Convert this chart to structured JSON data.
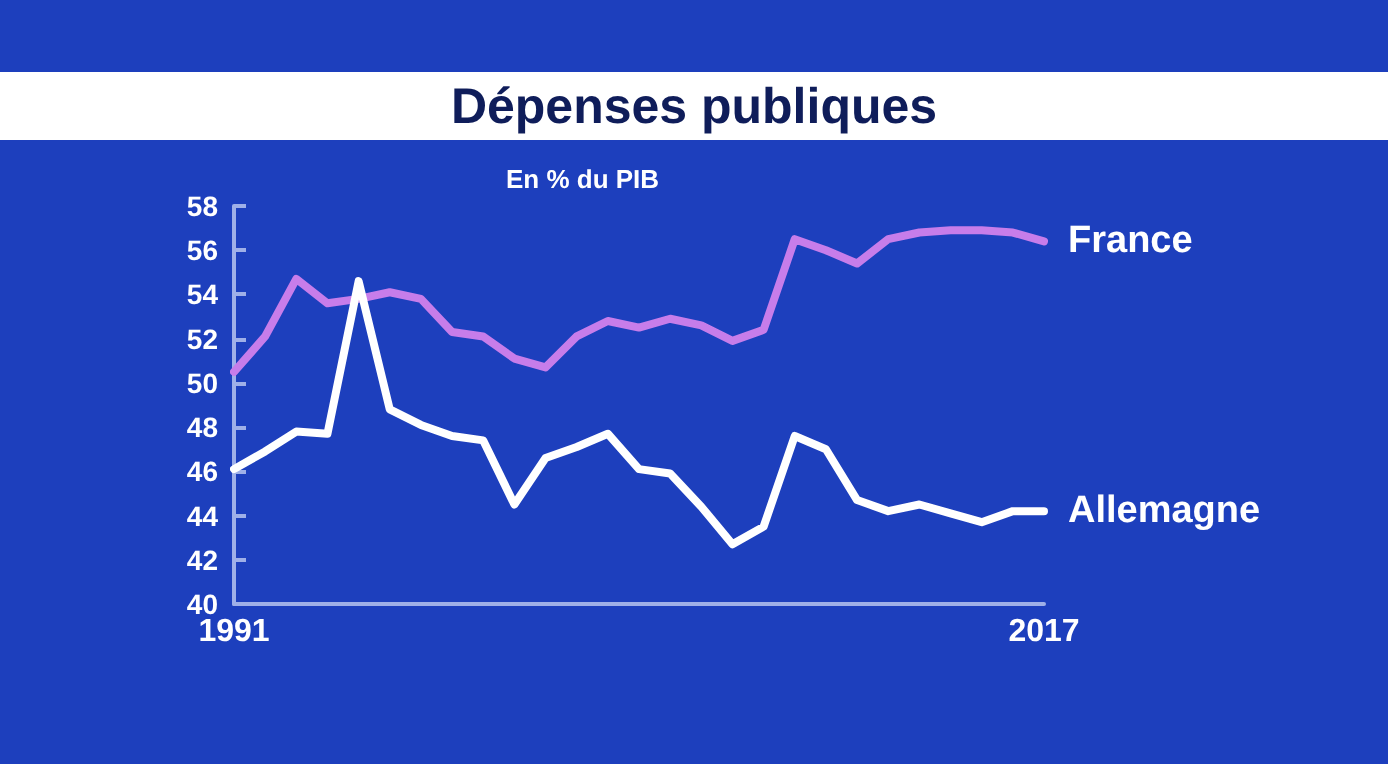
{
  "chart_data": {
    "type": "line",
    "title": "Dépenses publiques",
    "subtitle": "En % du PIB",
    "x": [
      1991,
      1992,
      1993,
      1994,
      1995,
      1996,
      1997,
      1998,
      1999,
      2000,
      2001,
      2002,
      2003,
      2004,
      2005,
      2006,
      2007,
      2008,
      2009,
      2010,
      2011,
      2012,
      2013,
      2014,
      2015,
      2016,
      2017
    ],
    "xlim": [
      1991,
      2017
    ],
    "xticks": [
      1991,
      2017
    ],
    "ylim": [
      40,
      58
    ],
    "yticks": [
      40,
      42,
      44,
      46,
      48,
      50,
      52,
      54,
      56,
      58
    ],
    "series": [
      {
        "name": "France",
        "color": "#c77dea",
        "values": [
          50.5,
          52.1,
          54.7,
          53.6,
          53.8,
          54.1,
          53.8,
          52.3,
          52.1,
          51.1,
          50.7,
          52.1,
          52.8,
          52.5,
          52.9,
          52.6,
          51.9,
          52.4,
          56.5,
          56.0,
          55.4,
          56.5,
          56.8,
          56.9,
          56.9,
          56.8,
          56.4
        ]
      },
      {
        "name": "Allemagne",
        "color": "#ffffff",
        "values": [
          46.1,
          46.9,
          47.8,
          47.7,
          54.6,
          48.8,
          48.1,
          47.6,
          47.4,
          44.5,
          46.6,
          47.1,
          47.7,
          46.1,
          45.9,
          44.4,
          42.7,
          43.5,
          47.6,
          47.0,
          44.7,
          44.2,
          44.5,
          44.1,
          43.7,
          44.2,
          44.2
        ]
      }
    ],
    "grid": false,
    "legend": false,
    "marker": "none",
    "line_style": "solid"
  }
}
